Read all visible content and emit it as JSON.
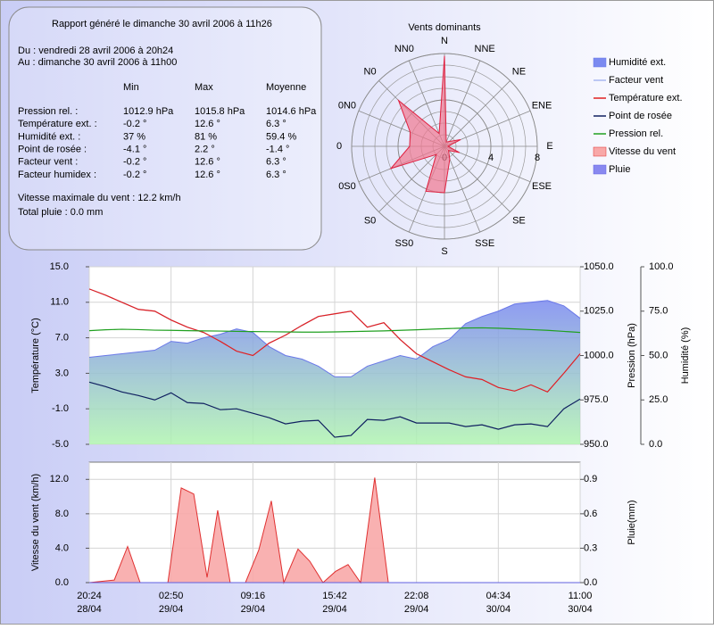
{
  "report": {
    "title": "Rapport généré le dimanche 30 avril 2006 à 11h26",
    "from": "Du : vendredi 28 avril 2006 à 20h24",
    "to": "Au : dimanche 30 avril 2006 à 11h00",
    "columns": [
      "Min",
      "Max",
      "Moyenne"
    ],
    "rows": [
      [
        "Pression rel. :",
        "1012.9 hPa",
        "1015.8 hPa",
        "1014.6 hPa"
      ],
      [
        "Température ext. :",
        "-0.2 °",
        "12.6 °",
        "6.3 °"
      ],
      [
        "Humidité ext. :",
        "37 %",
        "81 %",
        "59.4 %"
      ],
      [
        "Point de rosée :",
        "-4.1 °",
        "2.2 °",
        "-1.4 °"
      ],
      [
        "Facteur vent :",
        "-0.2 °",
        "12.6 °",
        "6.3 °"
      ],
      [
        "Facteur humidex :",
        "-0.2 °",
        "12.6 °",
        "6.3 °"
      ]
    ],
    "max_wind": "Vitesse maximale du vent : 12.2 km/h",
    "rain": "Total pluie : 0.0 mm"
  },
  "chart_data": [
    {
      "type": "radar",
      "title": "Vents dominants",
      "categories": [
        "N",
        "NNE",
        "NE",
        "ENE",
        "E",
        "ESE",
        "SE",
        "SSE",
        "S",
        "SS0",
        "S0",
        "0S0",
        "0",
        "0N0",
        "N0",
        "NN0"
      ],
      "values": [
        7.8,
        0.4,
        0.6,
        1.5,
        0.3,
        1.4,
        0.5,
        1.2,
        4.0,
        4.2,
        1.0,
        5.0,
        3.0,
        3.2,
        5.6,
        1.2
      ],
      "color": "#f07890",
      "line_color": "#e02040",
      "rlim": [
        0,
        8
      ],
      "rticks": [
        0,
        4,
        8
      ]
    },
    {
      "type": "line",
      "ylabel": "Température (°C)",
      "y2label": "Pression (hPa)",
      "y3label": "Humidité (%)",
      "grid": true,
      "x": [
        "28/04 20:24",
        "28/04 21:41",
        "28/04 22:58",
        "29/04 00:16",
        "29/04 01:33",
        "29/04 02:50",
        "29/04 04:07",
        "29/04 05:24",
        "29/04 06:42",
        "29/04 07:59",
        "29/04 09:16",
        "29/04 10:33",
        "29/04 11:50",
        "29/04 13:08",
        "29/04 14:25",
        "29/04 15:42",
        "29/04 16:59",
        "29/04 18:16",
        "29/04 19:34",
        "29/04 20:51",
        "29/04 22:08",
        "29/04 23:25",
        "30/04 00:42",
        "30/04 02:00",
        "30/04 03:17",
        "30/04 04:34",
        "30/04 05:51",
        "30/04 07:08",
        "30/04 08:26",
        "30/04 09:43",
        "30/04 11:00"
      ],
      "xlim": [
        "28/04 20:24",
        "30/04 11:00"
      ],
      "ylim": [
        -5,
        15
      ],
      "yticks": [
        {
          "value": -5,
          "label": "-5.0"
        },
        {
          "value": -1,
          "label": "-1.0"
        },
        {
          "value": 3,
          "label": "3.0"
        },
        {
          "value": 7,
          "label": "7.0"
        },
        {
          "value": 11,
          "label": "11.0"
        },
        {
          "value": 15,
          "label": "15.0"
        }
      ],
      "y2lim": [
        950,
        1050
      ],
      "y2ticks": [
        {
          "value": 950,
          "label": "950.0"
        },
        {
          "value": 975,
          "label": "975.0"
        },
        {
          "value": 1000,
          "label": "1000.0"
        },
        {
          "value": 1025,
          "label": "1025.0"
        },
        {
          "value": 1050,
          "label": "1050.0"
        }
      ],
      "y3lim": [
        0,
        100
      ],
      "y3ticks": [
        {
          "value": 0,
          "label": "0.0"
        },
        {
          "value": 25,
          "label": "25.0"
        },
        {
          "value": 50,
          "label": "50.0"
        },
        {
          "value": 75,
          "label": "75.0"
        },
        {
          "value": 100,
          "label": "100.0"
        }
      ],
      "series": [
        {
          "name": "Humidité ext.",
          "axis": "y3",
          "area": true,
          "color": "#7b8af0",
          "gradient_to": "#b0f4b0",
          "line_color": "#6a78e8",
          "values": [
            49,
            50,
            51,
            52,
            53,
            58,
            57,
            60,
            62,
            65,
            63,
            55,
            50,
            48,
            44,
            38,
            38,
            44,
            47,
            50,
            48,
            55,
            59,
            68,
            72,
            75,
            79,
            80,
            81,
            78,
            71
          ]
        },
        {
          "name": "Facteur vent",
          "color": "#a8b8f0",
          "values": [
            12.5,
            11.8,
            11.0,
            10.2,
            10.0,
            9.0,
            8.2,
            7.6,
            6.6,
            5.5,
            5.0,
            6.4,
            7.3,
            8.4,
            9.4,
            9.7,
            10.0,
            8.2,
            8.7,
            6.8,
            5.2,
            4.3,
            3.4,
            2.6,
            2.3,
            1.4,
            1.0,
            1.7,
            0.9,
            3.0,
            5.2
          ]
        },
        {
          "name": "Température ext.",
          "color": "#e02020",
          "values": [
            12.5,
            11.8,
            11.0,
            10.2,
            10.0,
            9.0,
            8.2,
            7.6,
            6.6,
            5.5,
            5.0,
            6.4,
            7.3,
            8.4,
            9.4,
            9.7,
            10.0,
            8.2,
            8.7,
            6.8,
            5.2,
            4.3,
            3.4,
            2.6,
            2.3,
            1.4,
            1.0,
            1.7,
            0.9,
            3.0,
            5.2
          ]
        },
        {
          "name": "Point de rosée",
          "color": "#102060",
          "values": [
            2.0,
            1.5,
            0.9,
            0.5,
            0.0,
            0.8,
            -0.3,
            -0.4,
            -1.1,
            -1.0,
            -1.5,
            -2.0,
            -2.7,
            -2.4,
            -2.3,
            -4.2,
            -4.0,
            -2.2,
            -2.3,
            -1.9,
            -2.6,
            -2.6,
            -2.6,
            -3.0,
            -2.8,
            -3.3,
            -2.8,
            -2.7,
            -3.0,
            -1.0,
            0.1
          ]
        },
        {
          "name": "Pression rel.",
          "axis": "y2",
          "color": "#20a020",
          "values": [
            1014.0,
            1014.5,
            1014.8,
            1014.6,
            1014.3,
            1014.2,
            1014.0,
            1013.9,
            1013.8,
            1013.6,
            1013.5,
            1013.4,
            1013.3,
            1013.2,
            1013.2,
            1013.3,
            1013.5,
            1013.7,
            1013.9,
            1014.2,
            1014.5,
            1014.9,
            1015.2,
            1015.5,
            1015.6,
            1015.4,
            1015.0,
            1014.6,
            1014.2,
            1013.6,
            1013.0
          ]
        }
      ]
    },
    {
      "type": "line",
      "ylabel": "Vitesse du vent (km/h)",
      "y2label": "Pluie(mm)",
      "grid": true,
      "x": [
        "28/04 20:24",
        "28/04 22:22",
        "28/04 23:25",
        "29/04 00:24",
        "29/04 02:35",
        "29/04 03:38",
        "29/04 04:37",
        "29/04 05:40",
        "29/04 06:30",
        "29/04 07:29",
        "29/04 08:41",
        "29/04 09:44",
        "29/04 10:43",
        "29/04 11:42",
        "29/04 12:49",
        "29/04 13:44",
        "29/04 14:47",
        "29/04 15:46",
        "29/04 16:45",
        "29/04 17:44",
        "29/04 18:51",
        "29/04 19:55",
        "30/04 11:00"
      ],
      "xlim": [
        "28/04 20:24",
        "30/04 11:00"
      ],
      "xticks": [
        {
          "value": "28/04 20:24",
          "label": [
            "20:24",
            "28/04"
          ]
        },
        {
          "value": "29/04 02:50",
          "label": [
            "02:50",
            "29/04"
          ]
        },
        {
          "value": "29/04 09:16",
          "label": [
            "09:16",
            "29/04"
          ]
        },
        {
          "value": "29/04 15:42",
          "label": [
            "15:42",
            "29/04"
          ]
        },
        {
          "value": "29/04 22:08",
          "label": [
            "22:08",
            "29/04"
          ]
        },
        {
          "value": "30/04 04:34",
          "label": [
            "04:34",
            "30/04"
          ]
        },
        {
          "value": "30/04 11:00",
          "label": [
            "11:00",
            "30/04"
          ]
        }
      ],
      "ylim": [
        0,
        14
      ],
      "yticks": [
        {
          "value": 0,
          "label": "0.0"
        },
        {
          "value": 4,
          "label": "4.0"
        },
        {
          "value": 8,
          "label": "8.0"
        },
        {
          "value": 12,
          "label": "12.0"
        }
      ],
      "y2lim": [
        0,
        1.05
      ],
      "y2ticks": [
        {
          "value": 0,
          "label": "0.0"
        },
        0.3,
        0.6,
        0.9
      ],
      "series": [
        {
          "name": "Vitesse du vent",
          "area": true,
          "color": "#f8a8a8",
          "line_color": "#e03030",
          "values": [
            0,
            0.3,
            4.2,
            0,
            0,
            11.0,
            10.3,
            0.6,
            8.4,
            0,
            0,
            3.8,
            9.5,
            0,
            3.9,
            2.5,
            0,
            1.3,
            2.1,
            0,
            12.2,
            0,
            0
          ]
        },
        {
          "name": "Pluie",
          "axis": "y2",
          "area": true,
          "color": "#8888f0",
          "line_color": "#6060e0",
          "values": [
            0,
            0,
            0,
            0,
            0,
            0,
            0,
            0,
            0,
            0,
            0,
            0,
            0,
            0,
            0,
            0,
            0,
            0,
            0,
            0,
            0,
            0,
            0
          ]
        }
      ]
    }
  ]
}
